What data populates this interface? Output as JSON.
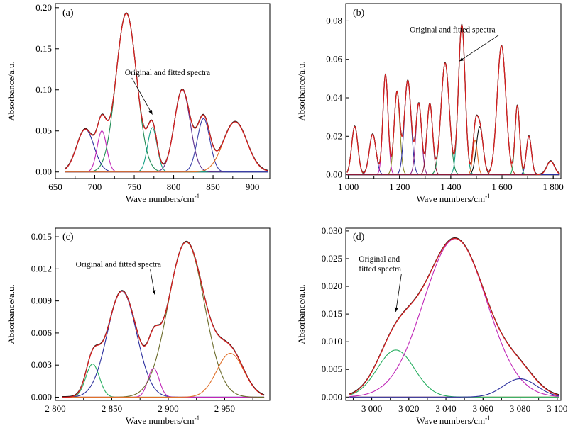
{
  "chart_data": [
    {
      "type": "line",
      "panel_label": "(a)",
      "xlabel": "Wave numbers/cm",
      "xlabel_sup": "-1",
      "ylabel": "Absorbance/a.u.",
      "xlim": [
        650,
        922
      ],
      "ylim": [
        -0.008,
        0.205
      ],
      "x_ticks": [
        650,
        700,
        750,
        800,
        850,
        900
      ],
      "x_tick_labels": [
        "650",
        "700",
        "750",
        "800",
        "850",
        "900"
      ],
      "y_ticks": [
        0,
        0.05,
        0.1,
        0.15,
        0.2
      ],
      "y_tick_labels": [
        "0.00",
        "0.05",
        "0.10",
        "0.15",
        "0.20"
      ],
      "x_range": [
        662,
        920
      ],
      "baseline": 0.0,
      "annotation": {
        "text": "Original and fitted spectra",
        "x": 738,
        "y": 0.118,
        "arrow_to_x": 773,
        "arrow_to_y": 0.07
      },
      "peaks": [
        {
          "center": 688,
          "height": 0.052,
          "width": 11,
          "color": "#2b2f9e"
        },
        {
          "center": 709,
          "height": 0.05,
          "width": 6,
          "color": "#c026b8"
        },
        {
          "center": 740,
          "height": 0.193,
          "width": 13,
          "color": "#1e8a52"
        },
        {
          "center": 773,
          "height": 0.054,
          "width": 6,
          "color": "#16a085"
        },
        {
          "center": 811,
          "height": 0.1,
          "width": 10,
          "color": "#5b2c8c"
        },
        {
          "center": 838,
          "height": 0.065,
          "width": 8,
          "color": "#3b3fa8"
        },
        {
          "center": 878,
          "height": 0.061,
          "width": 15,
          "color": "#e0702a"
        }
      ]
    },
    {
      "type": "line",
      "panel_label": "(b)",
      "xlabel": "Wave numbers/cm",
      "xlabel_sup": "-1",
      "ylabel": "Absorbance/a.u.",
      "xlim": [
        990,
        1830
      ],
      "ylim": [
        -0.002,
        0.089
      ],
      "x_ticks": [
        1000,
        1200,
        1400,
        1600,
        1800
      ],
      "x_tick_labels": [
        "1 000",
        "1 200",
        "1 400",
        "1 600",
        "1 800"
      ],
      "y_ticks": [
        0,
        0.02,
        0.04,
        0.06,
        0.08
      ],
      "y_tick_labels": [
        "0.00",
        "0.02",
        "0.04",
        "0.06",
        "0.08"
      ],
      "x_range": [
        995,
        1825
      ],
      "baseline": 0.0,
      "annotation": {
        "text": "Original and fitted spectra",
        "x": 1240,
        "y": 0.074,
        "arrow_to_x": 1433,
        "arrow_to_y": 0.059
      },
      "peaks": [
        {
          "center": 1025,
          "height": 0.025,
          "width": 12,
          "color": "#1e8a52"
        },
        {
          "center": 1095,
          "height": 0.021,
          "width": 13,
          "color": "#2b2f9e"
        },
        {
          "center": 1145,
          "height": 0.052,
          "width": 10,
          "color": "#c026b8"
        },
        {
          "center": 1190,
          "height": 0.043,
          "width": 11,
          "color": "#8a8a2a"
        },
        {
          "center": 1232,
          "height": 0.049,
          "width": 13,
          "color": "#2b2f9e"
        },
        {
          "center": 1275,
          "height": 0.037,
          "width": 11,
          "color": "#8a2a8a"
        },
        {
          "center": 1318,
          "height": 0.037,
          "width": 11,
          "color": "#8b1a3a"
        },
        {
          "center": 1378,
          "height": 0.058,
          "width": 16,
          "color": "#1e8a52"
        },
        {
          "center": 1443,
          "height": 0.078,
          "width": 13,
          "color": "#16a085"
        },
        {
          "center": 1495,
          "height": 0.018,
          "width": 9,
          "color": "#e0702a"
        },
        {
          "center": 1513,
          "height": 0.025,
          "width": 13,
          "color": "#111111"
        },
        {
          "center": 1598,
          "height": 0.067,
          "width": 17,
          "color": "#c0392b"
        },
        {
          "center": 1660,
          "height": 0.036,
          "width": 9,
          "color": "#27ae60"
        },
        {
          "center": 1705,
          "height": 0.02,
          "width": 10,
          "color": "#2b2f9e"
        },
        {
          "center": 1790,
          "height": 0.007,
          "width": 15,
          "color": "#8b1a3a"
        }
      ]
    },
    {
      "type": "line",
      "panel_label": "(c)",
      "xlabel": "Wave numbers/cm",
      "xlabel_sup": "-1",
      "ylabel": "Absorbance/a.u.",
      "xlim": [
        2800,
        2990
      ],
      "ylim": [
        -0.0003,
        0.0158
      ],
      "x_ticks": [
        2800,
        2850,
        2900,
        2950
      ],
      "x_tick_labels": [
        "2 800",
        "2 850",
        "2 900",
        "2 950"
      ],
      "y_ticks": [
        0,
        0.003,
        0.006,
        0.009,
        0.012,
        0.015
      ],
      "y_tick_labels": [
        "0.000",
        "0.003",
        "0.006",
        "0.009",
        "0.012",
        "0.015"
      ],
      "x_range": [
        2806,
        2985
      ],
      "baseline": 0.0,
      "annotation": {
        "text": "Original and fitted spectra",
        "x": 2818,
        "y": 0.0122,
        "arrow_to_x": 2888,
        "arrow_to_y": 0.0096
      },
      "peaks": [
        {
          "center": 2833,
          "height": 0.0031,
          "width": 6,
          "color": "#27ae60"
        },
        {
          "center": 2859,
          "height": 0.0099,
          "width": 13,
          "color": "#2b2f9e"
        },
        {
          "center": 2887,
          "height": 0.0027,
          "width": 5,
          "color": "#c026b8"
        },
        {
          "center": 2916,
          "height": 0.0145,
          "width": 16,
          "color": "#6b6b2a"
        },
        {
          "center": 2955,
          "height": 0.0041,
          "width": 12,
          "color": "#e0702a"
        }
      ]
    },
    {
      "type": "line",
      "panel_label": "(d)",
      "xlabel": "Wave numbers/cm",
      "xlabel_sup": "-1",
      "ylabel": "Absorbance/a.u.",
      "xlim": [
        2986,
        3102
      ],
      "ylim": [
        -0.0006,
        0.0305
      ],
      "x_ticks": [
        3000,
        3020,
        3040,
        3060,
        3080,
        3100
      ],
      "x_tick_labels": [
        "3 000",
        "3 020",
        "3 040",
        "3 060",
        "3 080",
        "3 100"
      ],
      "y_ticks": [
        0,
        0.005,
        0.01,
        0.015,
        0.02,
        0.025,
        0.03
      ],
      "y_tick_labels": [
        "0.000",
        "0.005",
        "0.010",
        "0.015",
        "0.020",
        "0.025",
        "0.030"
      ],
      "x_range": [
        2988,
        3101
      ],
      "baseline": 0.0,
      "annotation": {
        "text": "Original and fitted spectra",
        "x": 2993,
        "y": 0.0245,
        "arrow_to_x": 3013,
        "arrow_to_y": 0.0154
      },
      "peaks": [
        {
          "center": 3013,
          "height": 0.0085,
          "width": 10,
          "color": "#27ae60"
        },
        {
          "center": 3045,
          "height": 0.0286,
          "width": 17,
          "color": "#c026b8"
        },
        {
          "center": 3080,
          "height": 0.0033,
          "width": 9,
          "color": "#2b2f9e"
        }
      ]
    }
  ],
  "colors": {
    "original": "#111111",
    "fitted": "#d42020",
    "baseline": "#e0702a"
  }
}
